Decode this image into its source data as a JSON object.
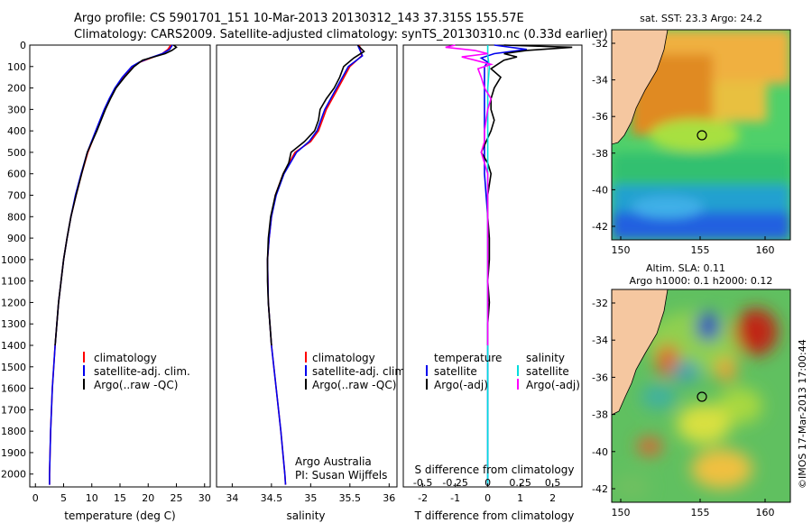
{
  "header": {
    "line1": "Argo profile: CS 5901701_151 10-Mar-2013 20130312_143 37.315S 155.57E",
    "line2": "Climatology: CARS2009. Satellite-adjusted climatology: synTS_20130310.nc (0.33d earlier)"
  },
  "chart_data": [
    {
      "type": "line",
      "name": "temperature-profile",
      "xlabel": "temperature (deg C)",
      "ylabel": "",
      "xlim": [
        -1,
        31
      ],
      "ylim": [
        0,
        2060
      ],
      "xticks": [
        "0",
        "5",
        "10",
        "15",
        "20",
        "25",
        "30"
      ],
      "xtick_values": [
        0,
        5,
        10,
        15,
        20,
        25,
        30
      ],
      "yticks": [
        "0",
        "100",
        "200",
        "300",
        "400",
        "500",
        "600",
        "700",
        "800",
        "900",
        "1000",
        "1100",
        "1200",
        "1300",
        "1400",
        "1500",
        "1600",
        "1700",
        "1800",
        "1900",
        "2000"
      ],
      "ytick_values": [
        0,
        100,
        200,
        300,
        400,
        500,
        600,
        700,
        800,
        900,
        1000,
        1100,
        1200,
        1300,
        1400,
        1500,
        1600,
        1700,
        1800,
        1900,
        2000
      ],
      "legend": [
        "climatology",
        "satellite-adj. clim.",
        "Argo(..raw -QC)"
      ],
      "series": [
        {
          "name": "climatology",
          "color": "#ff0000",
          "depth": [
            0,
            20,
            40,
            60,
            80,
            100,
            150,
            200,
            250,
            300,
            400,
            500,
            600,
            700,
            800,
            900,
            1000,
            1200,
            1400,
            1600,
            1800,
            2000,
            2050
          ],
          "values": [
            24.0,
            23.5,
            22.5,
            20.5,
            18.5,
            17.2,
            15.5,
            14.2,
            13.2,
            12.3,
            10.8,
            9.3,
            8.2,
            7.2,
            6.3,
            5.6,
            5.0,
            4.1,
            3.5,
            3.0,
            2.7,
            2.5,
            2.5
          ]
        },
        {
          "name": "satellite-adj. clim.",
          "color": "#0000ee",
          "depth": [
            0,
            20,
            40,
            60,
            80,
            100,
            150,
            200,
            250,
            300,
            400,
            500,
            600,
            700,
            800,
            900,
            1000,
            1200,
            1400,
            1600,
            1800,
            2000,
            2050
          ],
          "values": [
            24.3,
            23.8,
            22.5,
            20.3,
            18.4,
            17.1,
            15.4,
            14.1,
            13.1,
            12.2,
            10.7,
            9.2,
            8.1,
            7.1,
            6.3,
            5.6,
            5.0,
            4.1,
            3.5,
            3.0,
            2.7,
            2.5,
            2.5
          ]
        },
        {
          "name": "Argo(..raw -QC)",
          "color": "#000000",
          "depth": [
            0,
            10,
            25,
            40,
            55,
            70,
            100,
            150,
            200,
            250,
            300,
            400,
            500,
            600,
            700,
            800,
            900,
            1000,
            1200,
            1400
          ],
          "values": [
            24.5,
            25.0,
            24.2,
            23.0,
            21.0,
            19.0,
            17.5,
            15.8,
            14.3,
            13.3,
            12.4,
            10.9,
            9.2,
            8.2,
            7.2,
            6.3,
            5.6,
            5.0,
            4.1,
            3.5
          ]
        }
      ]
    },
    {
      "type": "line",
      "name": "salinity-profile",
      "xlabel": "salinity",
      "xlim": [
        33.8,
        36.1
      ],
      "ylim": [
        0,
        2060
      ],
      "xticks": [
        "34",
        "34.5",
        "35",
        "35.5",
        "36"
      ],
      "xtick_values": [
        34,
        34.5,
        35,
        35.5,
        36
      ],
      "legend": [
        "climatology",
        "satellite-adj. clim.",
        "Argo(..raw -QC)"
      ],
      "annotations": [
        "Argo Australia",
        "PI: Susan Wijffels"
      ],
      "series": [
        {
          "name": "climatology",
          "color": "#ff0000",
          "depth": [
            0,
            50,
            100,
            200,
            300,
            400,
            450,
            500,
            600,
            700,
            800,
            900,
            1000,
            1200,
            1400,
            1600,
            1800,
            2000,
            2050
          ],
          "values": [
            35.62,
            35.65,
            35.5,
            35.35,
            35.2,
            35.1,
            35.0,
            34.8,
            34.65,
            34.55,
            34.5,
            34.47,
            34.45,
            34.46,
            34.5,
            34.56,
            34.62,
            34.67,
            34.68
          ]
        },
        {
          "name": "satellite-adj. clim.",
          "color": "#0000ee",
          "depth": [
            0,
            50,
            100,
            200,
            300,
            400,
            450,
            500,
            600,
            700,
            800,
            900,
            1000,
            1200,
            1400,
            1600,
            1800,
            2000,
            2050
          ],
          "values": [
            35.6,
            35.66,
            35.48,
            35.33,
            35.18,
            35.08,
            34.98,
            34.82,
            34.66,
            34.56,
            34.5,
            34.47,
            34.45,
            34.46,
            34.5,
            34.56,
            34.62,
            34.67,
            34.68
          ]
        },
        {
          "name": "Argo(..raw -QC)",
          "color": "#000000",
          "depth": [
            0,
            30,
            60,
            100,
            150,
            200,
            250,
            300,
            350,
            400,
            450,
            500,
            550,
            600,
            700,
            800,
            900,
            1000,
            1100,
            1200,
            1400
          ],
          "values": [
            35.6,
            35.68,
            35.55,
            35.42,
            35.37,
            35.3,
            35.2,
            35.12,
            35.1,
            35.05,
            34.92,
            34.75,
            34.72,
            34.65,
            34.55,
            34.49,
            34.46,
            34.45,
            34.45,
            34.46,
            34.5
          ]
        }
      ]
    },
    {
      "type": "line",
      "name": "difference-profile",
      "xlabel": "T difference from climatology",
      "xlabel_top": "S difference from climatology",
      "xlim": [
        -2.6,
        2.9
      ],
      "ylim": [
        0,
        2060
      ],
      "xticks": [
        "-2",
        "-1",
        "0",
        "1",
        "2"
      ],
      "xtick_values": [
        -2,
        -1,
        0,
        1,
        2
      ],
      "xticks_s": [
        "-0.5",
        "-0.25",
        "0",
        "0.25",
        "0.5"
      ],
      "xtick_s_values": [
        -2,
        -1,
        0,
        1,
        2
      ],
      "legend_temperature": {
        "title": "temperature",
        "items": [
          "satellite",
          "Argo(-adj)"
        ]
      },
      "legend_salinity": {
        "title": "salinity",
        "items": [
          "satellite",
          "Argo(-adj)"
        ]
      },
      "series": [
        {
          "name": "temperature satellite",
          "color": "#0000ee",
          "depth": [
            0,
            20,
            40,
            60,
            80,
            100,
            150,
            200,
            300,
            400,
            600,
            800,
            1000,
            1400,
            2050
          ],
          "values": [
            0.2,
            1.2,
            0.2,
            -0.2,
            0.0,
            -0.1,
            -0.1,
            -0.1,
            -0.1,
            -0.1,
            -0.1,
            0.0,
            0.0,
            0.0,
            0.0
          ]
        },
        {
          "name": "temperature Argo(-adj)",
          "color": "#000000",
          "depth": [
            0,
            10,
            25,
            40,
            55,
            70,
            90,
            110,
            150,
            200,
            250,
            300,
            350,
            400,
            500,
            550,
            600,
            700,
            800,
            900,
            1000,
            1100,
            1200,
            1300,
            1400
          ],
          "values": [
            0.5,
            2.6,
            1.2,
            0.5,
            0.9,
            0.5,
            0.3,
            0.1,
            0.4,
            0.2,
            0.1,
            0.1,
            0.2,
            0.1,
            -0.2,
            0.0,
            0.1,
            0.0,
            0.0,
            0.05,
            0.05,
            0.0,
            0.05,
            0.0,
            0.0
          ]
        },
        {
          "name": "salinity satellite",
          "color": "#00dddd",
          "depth": [
            0,
            50,
            100,
            200,
            400,
            600,
            800,
            1000,
            1400,
            2050
          ],
          "values": [
            0.0,
            0.0,
            0.05,
            0.0,
            0.0,
            0.0,
            0.0,
            0.0,
            0.0,
            0.0
          ]
        },
        {
          "name": "salinity Argo(-adj)",
          "color": "#ff00ff",
          "depth": [
            0,
            10,
            25,
            40,
            55,
            70,
            90,
            110,
            150,
            200,
            250,
            300,
            400,
            450,
            500,
            550,
            600,
            700,
            800,
            900,
            1000,
            1200,
            1400
          ],
          "values": [
            -1.0,
            -1.3,
            -0.4,
            0.0,
            -0.8,
            -0.4,
            0.1,
            -0.3,
            -0.2,
            -0.1,
            0.1,
            0.0,
            -0.1,
            -0.1,
            -0.2,
            -0.1,
            0.0,
            0.0,
            0.0,
            0.0,
            0.0,
            0.0,
            0.0
          ]
        }
      ]
    }
  ],
  "maps": {
    "sst": {
      "title": "sat. SST: 23.3 Argo: 24.2",
      "yticks": [
        "-32",
        "-34",
        "-36",
        "-38",
        "-40",
        "-42"
      ],
      "xticks": [
        "150",
        "155",
        "160"
      ]
    },
    "sla": {
      "title_line1": "Altim. SLA: 0.11",
      "title_line2": "Argo h1000: 0.1 h2000: 0.12",
      "yticks": [
        "-32",
        "-34",
        "-36",
        "-38",
        "-40",
        "-42"
      ],
      "xticks": [
        "150",
        "155",
        "160"
      ]
    }
  },
  "footer": {
    "credit": "©IMOS 17-Mar-2013 17:00:44"
  },
  "colors": {
    "climatology": "#ff0000",
    "satellite": "#0000ee",
    "argo": "#000000",
    "sal_satellite": "#00dddd",
    "sal_argo": "#ff00ff",
    "land": "#f5c7a0"
  }
}
